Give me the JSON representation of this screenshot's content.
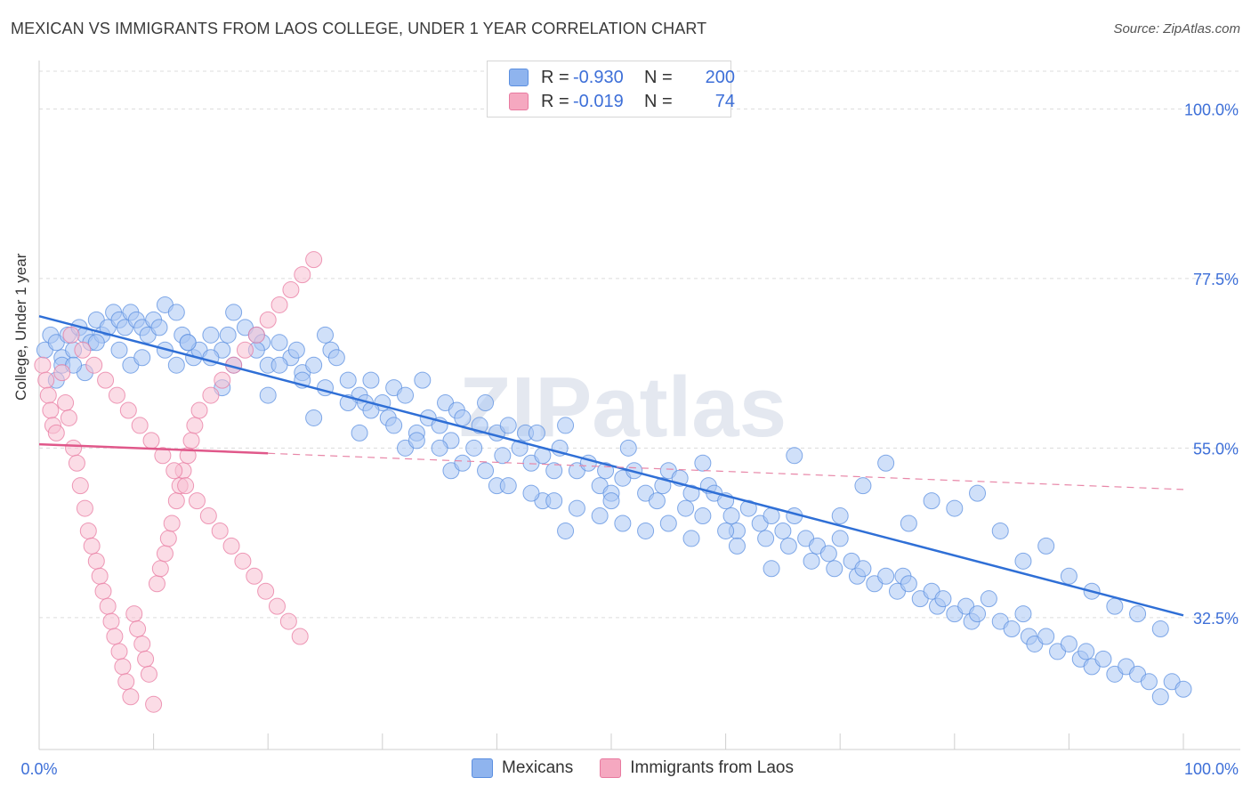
{
  "title": "MEXICAN VS IMMIGRANTS FROM LAOS COLLEGE, UNDER 1 YEAR CORRELATION CHART",
  "source": "Source: ZipAtlas.com",
  "watermark": "ZIPatlas",
  "legend": {
    "rows": [
      {
        "r_label": "R =",
        "r_value": "-0.930",
        "n_label": "N =",
        "n_value": "200",
        "color": "#8fb4ee"
      },
      {
        "r_label": "R =",
        "r_value": "-0.019",
        "n_label": "N =",
        "n_value": "74",
        "color": "#f5a8c0"
      }
    ]
  },
  "bottom_legend": [
    {
      "label": "Mexicans",
      "color": "#8fb4ee"
    },
    {
      "label": "Immigrants from Laos",
      "color": "#f5a8c0"
    }
  ],
  "chart_data": {
    "type": "scatter",
    "ylabel": "College, Under 1 year",
    "xlim": [
      0,
      100
    ],
    "ylim": [
      15,
      105
    ],
    "x_tick_labels": [
      "0.0%",
      "100.0%"
    ],
    "y_tick_labels": [
      {
        "value": 100.0,
        "label": "100.0%"
      },
      {
        "value": 77.5,
        "label": "77.5%"
      },
      {
        "value": 55.0,
        "label": "55.0%"
      },
      {
        "value": 32.5,
        "label": "32.5%"
      }
    ],
    "grid": true,
    "series": [
      {
        "name": "Mexicans",
        "color": "#5b8fe0",
        "fill": "#aac7f4",
        "trend": {
          "x": [
            0,
            100
          ],
          "y": [
            72.5,
            32.8
          ],
          "dashed_from": null
        },
        "points": [
          [
            0.5,
            68
          ],
          [
            1,
            70
          ],
          [
            1.5,
            69
          ],
          [
            2,
            67
          ],
          [
            2.5,
            70
          ],
          [
            3,
            68
          ],
          [
            3.5,
            71
          ],
          [
            4,
            70
          ],
          [
            4.5,
            69
          ],
          [
            5,
            72
          ],
          [
            5.5,
            70
          ],
          [
            6,
            71
          ],
          [
            6.5,
            73
          ],
          [
            7,
            72
          ],
          [
            7.5,
            71
          ],
          [
            8,
            73
          ],
          [
            8.5,
            72
          ],
          [
            9,
            71
          ],
          [
            9.5,
            70
          ],
          [
            10,
            72
          ],
          [
            10.5,
            71
          ],
          [
            11,
            74
          ],
          [
            12,
            73
          ],
          [
            12.5,
            70
          ],
          [
            13,
            69
          ],
          [
            13.5,
            67
          ],
          [
            14,
            68
          ],
          [
            15,
            70
          ],
          [
            16,
            68
          ],
          [
            16.5,
            70
          ],
          [
            17,
            73
          ],
          [
            18,
            71
          ],
          [
            19,
            70
          ],
          [
            19.5,
            69
          ],
          [
            20,
            66
          ],
          [
            21,
            69
          ],
          [
            22,
            67
          ],
          [
            22.5,
            68
          ],
          [
            23,
            65
          ],
          [
            24,
            66
          ],
          [
            25,
            70
          ],
          [
            25.5,
            68
          ],
          [
            26,
            67
          ],
          [
            27,
            64
          ],
          [
            28,
            62
          ],
          [
            28.5,
            61
          ],
          [
            29,
            64
          ],
          [
            30,
            61
          ],
          [
            30.5,
            59
          ],
          [
            31,
            63
          ],
          [
            32,
            62
          ],
          [
            33,
            57
          ],
          [
            33.5,
            64
          ],
          [
            34,
            59
          ],
          [
            35,
            58
          ],
          [
            35.5,
            61
          ],
          [
            36,
            56
          ],
          [
            36.5,
            60
          ],
          [
            37,
            59
          ],
          [
            38,
            55
          ],
          [
            38.5,
            58
          ],
          [
            39,
            61
          ],
          [
            40,
            57
          ],
          [
            40.5,
            54
          ],
          [
            41,
            58
          ],
          [
            42,
            55
          ],
          [
            42.5,
            57
          ],
          [
            43,
            53
          ],
          [
            43.5,
            57
          ],
          [
            44,
            54
          ],
          [
            45,
            52
          ],
          [
            45.5,
            55
          ],
          [
            46,
            58
          ],
          [
            47,
            52
          ],
          [
            48,
            53
          ],
          [
            49,
            50
          ],
          [
            49.5,
            52
          ],
          [
            50,
            49
          ],
          [
            51,
            51
          ],
          [
            51.5,
            55
          ],
          [
            52,
            52
          ],
          [
            53,
            49
          ],
          [
            54,
            48
          ],
          [
            54.5,
            50
          ],
          [
            55,
            52
          ],
          [
            56,
            51
          ],
          [
            56.5,
            47
          ],
          [
            57,
            49
          ],
          [
            58,
            46
          ],
          [
            58.5,
            50
          ],
          [
            59,
            49
          ],
          [
            60,
            48
          ],
          [
            60.5,
            46
          ],
          [
            61,
            44
          ],
          [
            62,
            47
          ],
          [
            63,
            45
          ],
          [
            63.5,
            43
          ],
          [
            64,
            46
          ],
          [
            65,
            44
          ],
          [
            65.5,
            42
          ],
          [
            66,
            46
          ],
          [
            67,
            43
          ],
          [
            67.5,
            40
          ],
          [
            68,
            42
          ],
          [
            69,
            41
          ],
          [
            69.5,
            39
          ],
          [
            70,
            43
          ],
          [
            71,
            40
          ],
          [
            71.5,
            38
          ],
          [
            72,
            39
          ],
          [
            73,
            37
          ],
          [
            74,
            38
          ],
          [
            75,
            36
          ],
          [
            75.5,
            38
          ],
          [
            76,
            37
          ],
          [
            77,
            35
          ],
          [
            78,
            36
          ],
          [
            78.5,
            34
          ],
          [
            79,
            35
          ],
          [
            80,
            33
          ],
          [
            81,
            34
          ],
          [
            81.5,
            32
          ],
          [
            82,
            33
          ],
          [
            83,
            35
          ],
          [
            84,
            32
          ],
          [
            85,
            31
          ],
          [
            86,
            33
          ],
          [
            86.5,
            30
          ],
          [
            87,
            29
          ],
          [
            88,
            30
          ],
          [
            89,
            28
          ],
          [
            90,
            29
          ],
          [
            91,
            27
          ],
          [
            91.5,
            28
          ],
          [
            92,
            26
          ],
          [
            93,
            27
          ],
          [
            94,
            25
          ],
          [
            95,
            26
          ],
          [
            96,
            25
          ],
          [
            97,
            24
          ],
          [
            98,
            22
          ],
          [
            99,
            24
          ],
          [
            100,
            23
          ],
          [
            55,
            45
          ],
          [
            60,
            44
          ],
          [
            64,
            39
          ],
          [
            70,
            46
          ],
          [
            72,
            50
          ],
          [
            76,
            45
          ],
          [
            80,
            47
          ],
          [
            82,
            49
          ],
          [
            84,
            44
          ],
          [
            86,
            40
          ],
          [
            88,
            42
          ],
          [
            90,
            38
          ],
          [
            92,
            36
          ],
          [
            94,
            34
          ],
          [
            96,
            33
          ],
          [
            98,
            31
          ],
          [
            78,
            48
          ],
          [
            74,
            53
          ],
          [
            66,
            54
          ],
          [
            58,
            53
          ],
          [
            50,
            48
          ],
          [
            46,
            44
          ],
          [
            44,
            48
          ],
          [
            40,
            50
          ],
          [
            36,
            52
          ],
          [
            32,
            55
          ],
          [
            28,
            57
          ],
          [
            24,
            59
          ],
          [
            20,
            62
          ],
          [
            16,
            63
          ],
          [
            12,
            66
          ],
          [
            8,
            66
          ],
          [
            4,
            65
          ],
          [
            2,
            66
          ],
          [
            1.5,
            64
          ],
          [
            3,
            66
          ],
          [
            5,
            69
          ],
          [
            7,
            68
          ],
          [
            9,
            67
          ],
          [
            11,
            68
          ],
          [
            13,
            69
          ],
          [
            15,
            67
          ],
          [
            17,
            66
          ],
          [
            19,
            68
          ],
          [
            21,
            66
          ],
          [
            23,
            64
          ],
          [
            25,
            63
          ],
          [
            27,
            61
          ],
          [
            29,
            60
          ],
          [
            31,
            58
          ],
          [
            33,
            56
          ],
          [
            35,
            55
          ],
          [
            37,
            53
          ],
          [
            39,
            52
          ],
          [
            41,
            50
          ],
          [
            43,
            49
          ],
          [
            45,
            48
          ],
          [
            47,
            47
          ],
          [
            49,
            46
          ],
          [
            51,
            45
          ],
          [
            53,
            44
          ],
          [
            57,
            43
          ],
          [
            61,
            42
          ]
        ]
      },
      {
        "name": "Immigrants from Laos",
        "color": "#e87aa0",
        "fill": "#f8bfd2",
        "trend": {
          "x": [
            0,
            100
          ],
          "y": [
            55.5,
            49.5
          ],
          "solid_until": 20
        },
        "points": [
          [
            0.3,
            66
          ],
          [
            0.6,
            64
          ],
          [
            0.8,
            62
          ],
          [
            1,
            60
          ],
          [
            1.2,
            58
          ],
          [
            1.5,
            57
          ],
          [
            2,
            65
          ],
          [
            2.3,
            61
          ],
          [
            2.6,
            59
          ],
          [
            3,
            55
          ],
          [
            3.3,
            53
          ],
          [
            3.6,
            50
          ],
          [
            4,
            47
          ],
          [
            4.3,
            44
          ],
          [
            4.6,
            42
          ],
          [
            5,
            40
          ],
          [
            5.3,
            38
          ],
          [
            5.6,
            36
          ],
          [
            6,
            34
          ],
          [
            6.3,
            32
          ],
          [
            6.6,
            30
          ],
          [
            7,
            28
          ],
          [
            7.3,
            26
          ],
          [
            7.6,
            24
          ],
          [
            8,
            22
          ],
          [
            8.3,
            33
          ],
          [
            8.6,
            31
          ],
          [
            9,
            29
          ],
          [
            9.3,
            27
          ],
          [
            9.6,
            25
          ],
          [
            10,
            21
          ],
          [
            10.3,
            37
          ],
          [
            10.6,
            39
          ],
          [
            11,
            41
          ],
          [
            11.3,
            43
          ],
          [
            11.6,
            45
          ],
          [
            12,
            48
          ],
          [
            12.3,
            50
          ],
          [
            12.6,
            52
          ],
          [
            13,
            54
          ],
          [
            13.3,
            56
          ],
          [
            13.6,
            58
          ],
          [
            14,
            60
          ],
          [
            15,
            62
          ],
          [
            16,
            64
          ],
          [
            17,
            66
          ],
          [
            18,
            68
          ],
          [
            19,
            70
          ],
          [
            20,
            72
          ],
          [
            21,
            74
          ],
          [
            22,
            76
          ],
          [
            23,
            78
          ],
          [
            24,
            80
          ],
          [
            2.8,
            70
          ],
          [
            3.8,
            68
          ],
          [
            4.8,
            66
          ],
          [
            5.8,
            64
          ],
          [
            6.8,
            62
          ],
          [
            7.8,
            60
          ],
          [
            8.8,
            58
          ],
          [
            9.8,
            56
          ],
          [
            10.8,
            54
          ],
          [
            11.8,
            52
          ],
          [
            12.8,
            50
          ],
          [
            13.8,
            48
          ],
          [
            14.8,
            46
          ],
          [
            15.8,
            44
          ],
          [
            16.8,
            42
          ],
          [
            17.8,
            40
          ],
          [
            18.8,
            38
          ],
          [
            19.8,
            36
          ],
          [
            20.8,
            34
          ],
          [
            21.8,
            32
          ],
          [
            22.8,
            30
          ]
        ]
      }
    ]
  }
}
